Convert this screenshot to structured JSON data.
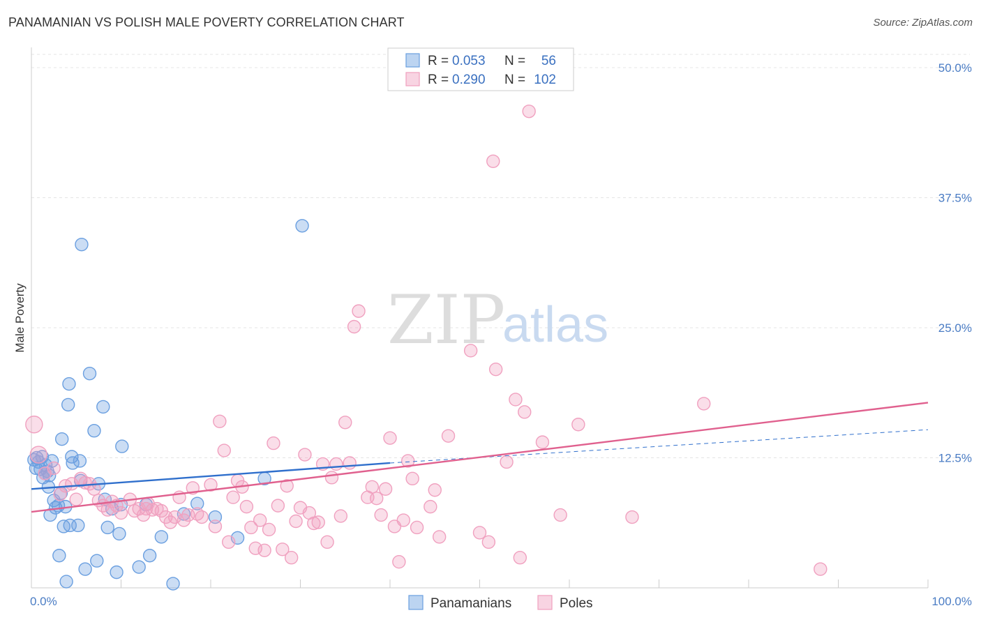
{
  "title": "PANAMANIAN VS POLISH MALE POVERTY CORRELATION CHART",
  "source": "Source: ZipAtlas.com",
  "watermark": {
    "zip": "ZIP",
    "atlas": "atlas"
  },
  "chart_data": {
    "type": "scatter",
    "title": "PANAMANIAN VS POLISH MALE POVERTY CORRELATION CHART",
    "ylabel": "Male Poverty",
    "xlim": [
      0,
      100
    ],
    "ylim": [
      0,
      50
    ],
    "x_ticks": [
      "0.0%",
      "100.0%"
    ],
    "y_ticks": [
      {
        "value": 12.5,
        "label": "12.5%"
      },
      {
        "value": 25.0,
        "label": "25.0%"
      },
      {
        "value": 37.5,
        "label": "37.5%"
      },
      {
        "value": 50.0,
        "label": "50.0%"
      }
    ],
    "grid": true,
    "legend_position": "top-center",
    "legend": [
      {
        "series": "Panamanians",
        "r_label": "R =",
        "r": "0.053",
        "n_label": "N =",
        "n": "56"
      },
      {
        "series": "Poles",
        "r_label": "R =",
        "r": "0.290",
        "n_label": "N =",
        "n": "102"
      }
    ],
    "series": [
      {
        "name": "Panamanians",
        "color": "#6a9fe0",
        "line_color": "#2f6fcc",
        "trend": {
          "x": [
            0,
            40
          ],
          "y": [
            9.5,
            12.0
          ]
        },
        "trend_dashed": {
          "x": [
            40,
            100
          ],
          "y": [
            12.0,
            15.2
          ]
        },
        "points": [
          [
            0.3,
            12.3
          ],
          [
            0.5,
            11.5
          ],
          [
            0.6,
            12.5
          ],
          [
            0.8,
            12.1
          ],
          [
            1.0,
            11.4
          ],
          [
            1.2,
            12.6
          ],
          [
            1.3,
            10.6
          ],
          [
            1.5,
            11.0
          ],
          [
            1.6,
            11.8
          ],
          [
            1.8,
            11.2
          ],
          [
            2.0,
            10.8
          ],
          [
            1.9,
            9.7
          ],
          [
            2.1,
            7.0
          ],
          [
            2.3,
            12.2
          ],
          [
            2.5,
            8.4
          ],
          [
            2.7,
            7.7
          ],
          [
            3.0,
            7.9
          ],
          [
            3.1,
            3.1
          ],
          [
            3.3,
            9.1
          ],
          [
            3.4,
            14.3
          ],
          [
            3.6,
            5.9
          ],
          [
            3.8,
            7.8
          ],
          [
            3.9,
            0.6
          ],
          [
            4.1,
            17.6
          ],
          [
            4.2,
            19.6
          ],
          [
            4.3,
            6.0
          ],
          [
            4.5,
            12.6
          ],
          [
            4.6,
            12.0
          ],
          [
            5.2,
            6.0
          ],
          [
            5.4,
            12.2
          ],
          [
            5.5,
            10.3
          ],
          [
            5.6,
            33.0
          ],
          [
            6.0,
            1.8
          ],
          [
            6.5,
            20.6
          ],
          [
            7.0,
            15.1
          ],
          [
            7.3,
            2.6
          ],
          [
            7.5,
            10.0
          ],
          [
            8.0,
            17.4
          ],
          [
            8.2,
            8.5
          ],
          [
            8.5,
            5.8
          ],
          [
            9.5,
            1.5
          ],
          [
            9.8,
            5.2
          ],
          [
            10.0,
            8.0
          ],
          [
            10.1,
            13.6
          ],
          [
            12.0,
            2.0
          ],
          [
            12.8,
            8.0
          ],
          [
            13.2,
            3.1
          ],
          [
            14.5,
            4.9
          ],
          [
            15.8,
            0.4
          ],
          [
            17.0,
            7.1
          ],
          [
            18.5,
            8.1
          ],
          [
            23.0,
            4.8
          ],
          [
            30.2,
            34.8
          ],
          [
            26.0,
            10.5
          ],
          [
            20.5,
            6.8
          ],
          [
            9.0,
            7.6
          ]
        ]
      },
      {
        "name": "Poles",
        "color": "#f0a0bf",
        "line_color": "#e0608e",
        "trend": {
          "x": [
            0,
            100
          ],
          "y": [
            7.3,
            17.8
          ]
        },
        "points": [
          [
            0.3,
            15.7
          ],
          [
            0.8,
            12.8
          ],
          [
            1.5,
            11.0
          ],
          [
            2.5,
            11.5
          ],
          [
            3.2,
            9.0
          ],
          [
            3.8,
            9.8
          ],
          [
            4.5,
            10.0
          ],
          [
            5.0,
            8.5
          ],
          [
            5.5,
            10.5
          ],
          [
            6.0,
            10.1
          ],
          [
            6.5,
            10.0
          ],
          [
            7.0,
            9.5
          ],
          [
            7.5,
            8.4
          ],
          [
            8.0,
            7.9
          ],
          [
            8.5,
            7.5
          ],
          [
            9.0,
            8.3
          ],
          [
            9.5,
            7.9
          ],
          [
            10.0,
            7.2
          ],
          [
            11.0,
            8.5
          ],
          [
            11.5,
            7.4
          ],
          [
            12.0,
            7.6
          ],
          [
            12.5,
            7.0
          ],
          [
            13.0,
            8.1
          ],
          [
            13.5,
            7.5
          ],
          [
            14.0,
            7.6
          ],
          [
            14.5,
            7.4
          ],
          [
            15.0,
            6.8
          ],
          [
            15.5,
            6.3
          ],
          [
            16.0,
            6.8
          ],
          [
            16.5,
            8.7
          ],
          [
            17.0,
            6.5
          ],
          [
            17.5,
            7.0
          ],
          [
            18.0,
            9.6
          ],
          [
            18.5,
            7.1
          ],
          [
            19.0,
            6.8
          ],
          [
            20.0,
            9.9
          ],
          [
            20.5,
            5.9
          ],
          [
            21.0,
            16.0
          ],
          [
            21.5,
            13.2
          ],
          [
            22.0,
            4.4
          ],
          [
            22.5,
            8.7
          ],
          [
            23.0,
            10.3
          ],
          [
            23.5,
            9.7
          ],
          [
            24.0,
            7.8
          ],
          [
            24.5,
            5.8
          ],
          [
            25.0,
            3.8
          ],
          [
            25.5,
            6.5
          ],
          [
            26.0,
            3.6
          ],
          [
            26.5,
            5.6
          ],
          [
            27.0,
            13.9
          ],
          [
            27.5,
            7.9
          ],
          [
            28.0,
            3.7
          ],
          [
            28.5,
            9.8
          ],
          [
            29.0,
            2.9
          ],
          [
            29.5,
            6.4
          ],
          [
            30.0,
            7.7
          ],
          [
            30.5,
            12.8
          ],
          [
            31.0,
            7.2
          ],
          [
            31.5,
            6.2
          ],
          [
            32.0,
            6.3
          ],
          [
            32.5,
            11.9
          ],
          [
            33.0,
            4.4
          ],
          [
            33.5,
            10.6
          ],
          [
            34.0,
            11.9
          ],
          [
            34.5,
            6.9
          ],
          [
            35.0,
            15.9
          ],
          [
            35.5,
            12.0
          ],
          [
            36.0,
            25.1
          ],
          [
            36.5,
            26.6
          ],
          [
            37.5,
            8.7
          ],
          [
            38.0,
            9.7
          ],
          [
            38.5,
            8.6
          ],
          [
            39.0,
            7.0
          ],
          [
            39.5,
            9.5
          ],
          [
            40.0,
            14.4
          ],
          [
            40.5,
            5.9
          ],
          [
            41.0,
            2.5
          ],
          [
            41.5,
            6.5
          ],
          [
            42.0,
            12.2
          ],
          [
            42.5,
            10.5
          ],
          [
            43.0,
            5.8
          ],
          [
            44.5,
            7.8
          ],
          [
            45.0,
            9.4
          ],
          [
            45.5,
            4.9
          ],
          [
            46.5,
            14.6
          ],
          [
            49.0,
            22.8
          ],
          [
            50.0,
            5.3
          ],
          [
            51.0,
            4.4
          ],
          [
            51.5,
            41.0
          ],
          [
            51.8,
            21.0
          ],
          [
            53.0,
            12.1
          ],
          [
            54.0,
            18.1
          ],
          [
            54.5,
            2.9
          ],
          [
            55.0,
            16.9
          ],
          [
            57.0,
            14.0
          ],
          [
            59.0,
            7.0
          ],
          [
            61.0,
            15.7
          ],
          [
            67.0,
            6.8
          ],
          [
            75.0,
            17.7
          ],
          [
            88.0,
            1.8
          ],
          [
            55.5,
            45.8
          ],
          [
            12.8,
            7.6
          ]
        ]
      }
    ]
  }
}
